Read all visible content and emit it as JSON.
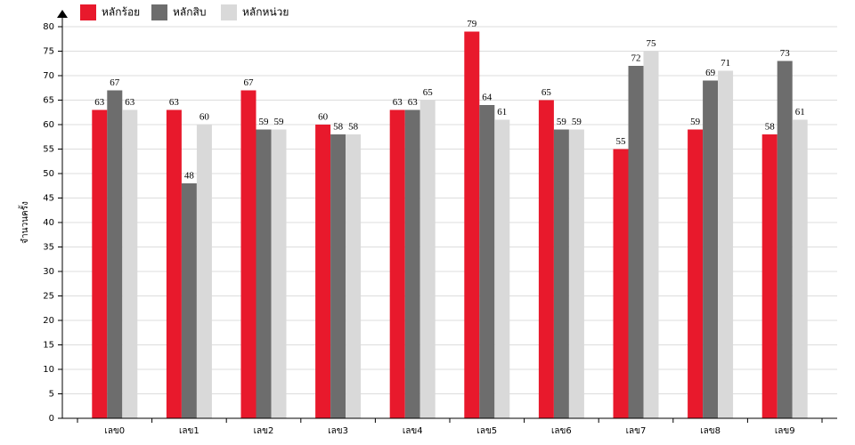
{
  "chart_data": {
    "type": "bar",
    "y_label": "จำนวนครั้ง",
    "categories": [
      "เลข0",
      "เลข1",
      "เลข2",
      "เลข3",
      "เลข4",
      "เลข5",
      "เลข6",
      "เลข7",
      "เลข8",
      "เลข9"
    ],
    "series": [
      {
        "name": "หลักร้อย",
        "color": "#e8192c",
        "values": [
          63,
          63,
          67,
          60,
          63,
          79,
          65,
          55,
          59,
          58
        ]
      },
      {
        "name": "หลักสิบ",
        "color": "#6d6d6d",
        "values": [
          67,
          48,
          59,
          58,
          63,
          64,
          59,
          72,
          69,
          73
        ]
      },
      {
        "name": "หลักหน่วย",
        "color": "#d9d9d9",
        "values": [
          63,
          60,
          59,
          58,
          65,
          61,
          59,
          75,
          71,
          61
        ]
      }
    ],
    "ylim": [
      0,
      80
    ],
    "yticks": [
      0,
      5,
      10,
      15,
      20,
      25,
      30,
      35,
      40,
      45,
      50,
      55,
      60,
      65,
      70,
      75,
      80
    ],
    "grid": true
  }
}
